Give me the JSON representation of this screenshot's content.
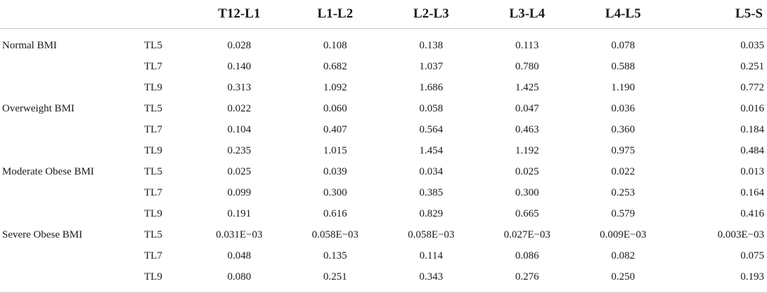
{
  "table": {
    "columns": [
      "T12-L1",
      "L1-L2",
      "L2-L3",
      "L3-L4",
      "L4-L5",
      "L5-S"
    ],
    "rows": [
      {
        "group": "Normal BMI",
        "tl": "TL5",
        "values": [
          "0.028",
          "0.108",
          "0.138",
          "0.113",
          "0.078",
          "0.035"
        ]
      },
      {
        "group": "",
        "tl": "TL7",
        "values": [
          "0.140",
          "0.682",
          "1.037",
          "0.780",
          "0.588",
          "0.251"
        ]
      },
      {
        "group": "",
        "tl": "TL9",
        "values": [
          "0.313",
          "1.092",
          "1.686",
          "1.425",
          "1.190",
          "0.772"
        ]
      },
      {
        "group": "Overweight BMI",
        "tl": "TL5",
        "values": [
          "0.022",
          "0.060",
          "0.058",
          "0.047",
          "0.036",
          "0.016"
        ]
      },
      {
        "group": "",
        "tl": "TL7",
        "values": [
          "0.104",
          "0.407",
          "0.564",
          "0.463",
          "0.360",
          "0.184"
        ]
      },
      {
        "group": "",
        "tl": "TL9",
        "values": [
          "0.235",
          "1.015",
          "1.454",
          "1.192",
          "0.975",
          "0.484"
        ]
      },
      {
        "group": "Moderate Obese BMI",
        "tl": "TL5",
        "values": [
          "0.025",
          "0.039",
          "0.034",
          "0.025",
          "0.022",
          "0.013"
        ]
      },
      {
        "group": "",
        "tl": "TL7",
        "values": [
          "0.099",
          "0.300",
          "0.385",
          "0.300",
          "0.253",
          "0.164"
        ]
      },
      {
        "group": "",
        "tl": "TL9",
        "values": [
          "0.191",
          "0.616",
          "0.829",
          "0.665",
          "0.579",
          "0.416"
        ]
      },
      {
        "group": "Severe Obese BMI",
        "tl": "TL5",
        "values": [
          "0.031E−03",
          "0.058E−03",
          "0.058E−03",
          "0.027E−03",
          "0.009E−03",
          "0.003E−03"
        ]
      },
      {
        "group": "",
        "tl": "TL7",
        "values": [
          "0.048",
          "0.135",
          "0.114",
          "0.086",
          "0.082",
          "0.075"
        ]
      },
      {
        "group": "",
        "tl": "TL9",
        "values": [
          "0.080",
          "0.251",
          "0.343",
          "0.276",
          "0.250",
          "0.193"
        ]
      }
    ]
  }
}
